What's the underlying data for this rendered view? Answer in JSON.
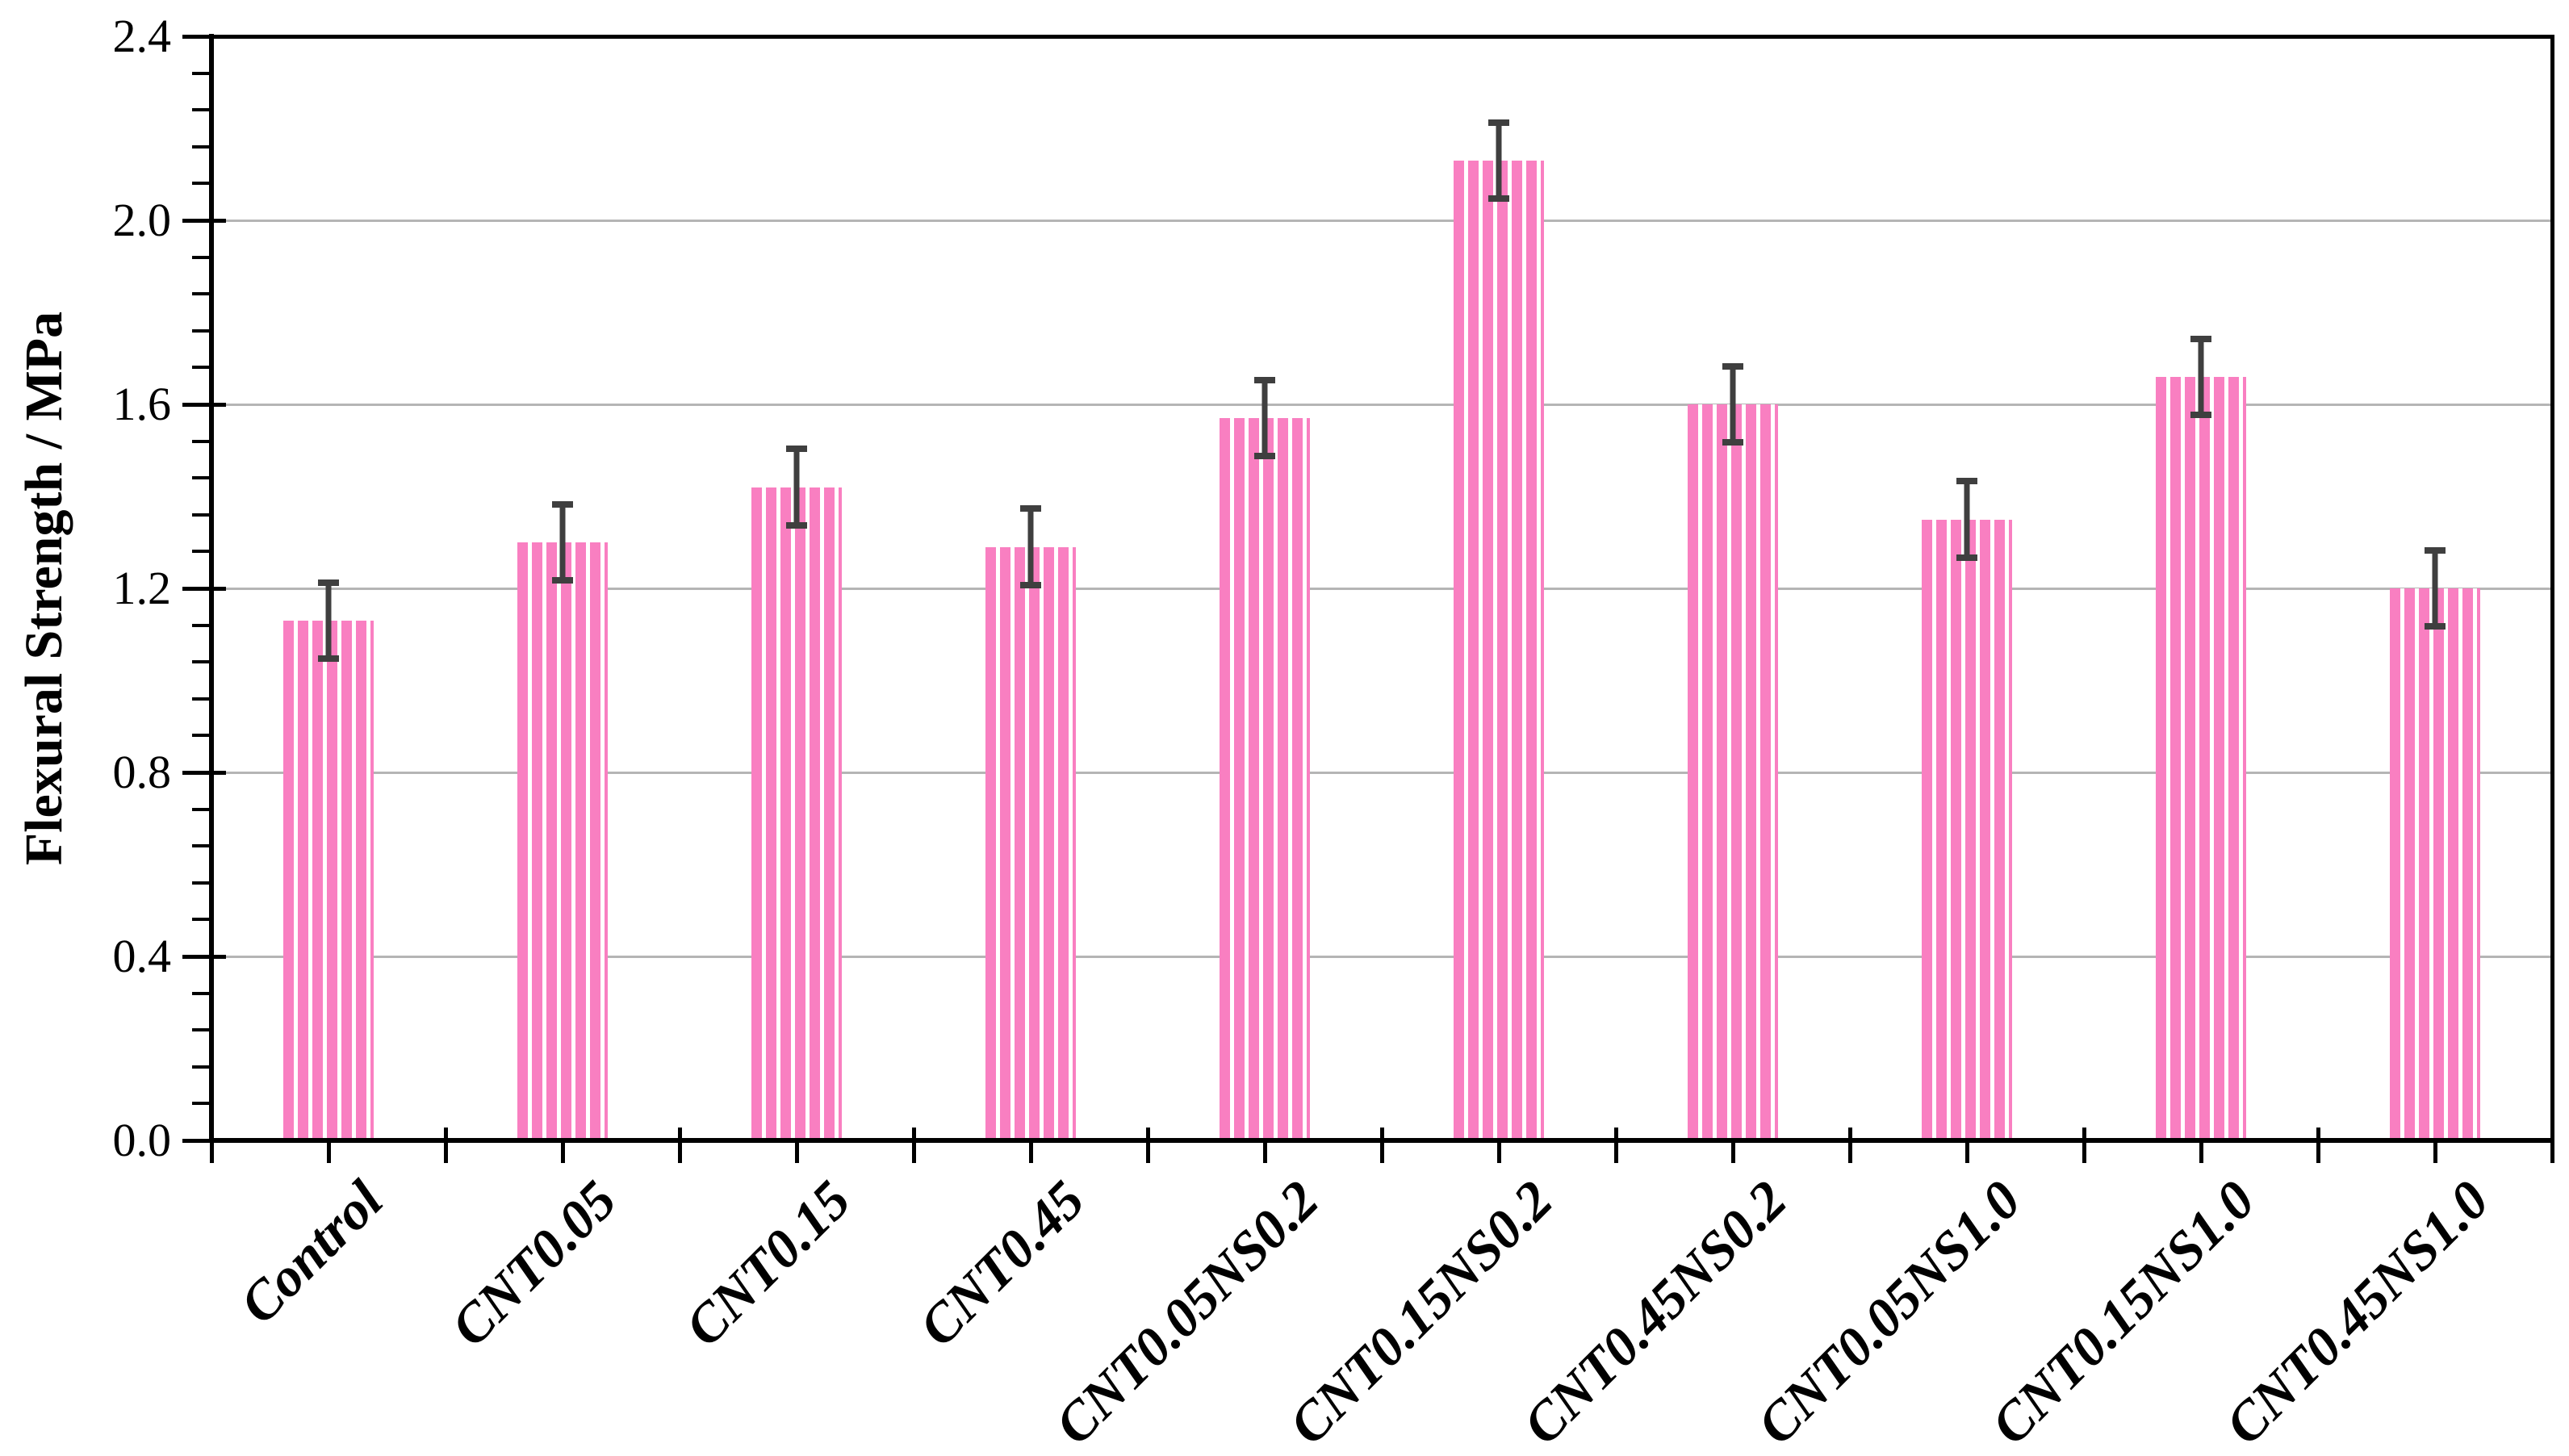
{
  "figure": {
    "y_axis_title": "Flexural Strength / MPa"
  },
  "chart_data": {
    "type": "bar",
    "title": "",
    "xlabel": "",
    "ylabel": "Flexural Strength / MPa",
    "categories": [
      "Control",
      "CNT0.05",
      "CNT0.15",
      "CNT0.45",
      "CNT0.05NS0.2",
      "CNT0.15NS0.2",
      "CNT0.45NS0.2",
      "CNT0.05NS1.0",
      "CNT0.15NS1.0",
      "CNT0.45NS1.0"
    ],
    "values": [
      1.13,
      1.3,
      1.42,
      1.29,
      1.57,
      2.13,
      1.6,
      1.35,
      1.66,
      1.2
    ],
    "error_bars": [
      0.09,
      0.09,
      0.09,
      0.09,
      0.09,
      0.09,
      0.09,
      0.09,
      0.09,
      0.09
    ],
    "ylim": [
      0.0,
      2.4
    ],
    "y_major_tick_step": 0.4,
    "y_minor_tick_step": 0.08,
    "y_tick_labels": [
      "0.0",
      "0.4",
      "0.8",
      "1.2",
      "1.6",
      "2.0",
      "2.4"
    ],
    "grid": "horizontal-major",
    "legend": null,
    "bar_color": "#F97FC1",
    "bar_hatch": "vertical white stripes",
    "bar_hatch_color": "#FFFFFF",
    "error_bar_color": "#3F3F3F",
    "gridline_color": "#B5B5B5",
    "axis_color": "#000000",
    "background_color": "#FFFFFF"
  }
}
